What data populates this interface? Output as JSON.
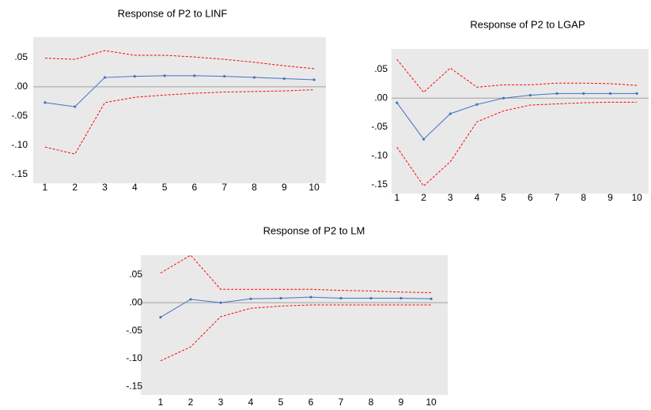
{
  "chart_data": [
    {
      "type": "line",
      "title": "Response of P2 to LINF",
      "categories": [
        1,
        2,
        3,
        4,
        5,
        6,
        7,
        8,
        9,
        10
      ],
      "series": [
        {
          "color": "#4472c4",
          "values": [
            -0.027,
            -0.034,
            0.016,
            0.018,
            0.019,
            0.019,
            0.018,
            0.016,
            0.014,
            0.012
          ]
        },
        {
          "color": "#ff0000",
          "dashed": true,
          "values": [
            0.049,
            0.047,
            0.062,
            0.054,
            0.054,
            0.051,
            0.047,
            0.042,
            0.036,
            0.031
          ]
        },
        {
          "color": "#ff0000",
          "dashed": true,
          "values": [
            -0.103,
            -0.115,
            -0.027,
            -0.018,
            -0.014,
            -0.011,
            -0.009,
            -0.008,
            -0.007,
            -0.005
          ]
        }
      ],
      "ylim": [
        -0.165,
        0.085
      ],
      "yticks": [
        {
          "value": 0.05,
          "label": ".05"
        },
        {
          "value": 0,
          "label": ".00"
        },
        {
          "value": -0.05,
          "label": "-.05"
        },
        {
          "value": -0.1,
          "label": "-.10"
        },
        {
          "value": -0.15,
          "label": "-.15"
        }
      ]
    },
    {
      "type": "line",
      "title": "Response of P2 to LGAP",
      "categories": [
        1,
        2,
        3,
        4,
        5,
        6,
        7,
        8,
        9,
        10
      ],
      "series": [
        {
          "color": "#4472c4",
          "values": [
            -0.008,
            -0.071,
            -0.027,
            -0.011,
            0,
            0.005,
            0.008,
            0.008,
            0.008,
            0.008
          ]
        },
        {
          "color": "#ff0000",
          "dashed": true,
          "values": [
            0.067,
            0.01,
            0.052,
            0.019,
            0.023,
            0.023,
            0.026,
            0.026,
            0.025,
            0.022
          ]
        },
        {
          "color": "#ff0000",
          "dashed": true,
          "values": [
            -0.085,
            -0.152,
            -0.11,
            -0.041,
            -0.022,
            -0.012,
            -0.01,
            -0.008,
            -0.007,
            -0.007
          ]
        }
      ],
      "ylim": [
        -0.165,
        0.085
      ],
      "yticks": [
        {
          "value": 0.05,
          "label": ".05"
        },
        {
          "value": 0,
          "label": ".00"
        },
        {
          "value": -0.05,
          "label": "-.05"
        },
        {
          "value": -0.1,
          "label": "-.10"
        },
        {
          "value": -0.15,
          "label": "-.15"
        }
      ]
    },
    {
      "type": "line",
      "title": "Response of P2 to LM",
      "categories": [
        1,
        2,
        3,
        4,
        5,
        6,
        7,
        8,
        9,
        10
      ],
      "series": [
        {
          "color": "#4472c4",
          "values": [
            -0.026,
            0.006,
            0,
            0.007,
            0.008,
            0.01,
            0.008,
            0.008,
            0.008,
            0.007
          ]
        },
        {
          "color": "#ff0000",
          "dashed": true,
          "values": [
            0.053,
            0.085,
            0.024,
            0.024,
            0.024,
            0.024,
            0.022,
            0.021,
            0.019,
            0.018
          ]
        },
        {
          "color": "#ff0000",
          "dashed": true,
          "values": [
            -0.104,
            -0.079,
            -0.025,
            -0.01,
            -0.006,
            -0.004,
            -0.004,
            -0.004,
            -0.004,
            -0.004
          ]
        }
      ],
      "ylim": [
        -0.165,
        0.085
      ],
      "yticks": [
        {
          "value": 0.05,
          "label": ".05"
        },
        {
          "value": 0,
          "label": ".00"
        },
        {
          "value": -0.05,
          "label": "-.05"
        },
        {
          "value": -0.1,
          "label": "-.10"
        },
        {
          "value": -0.15,
          "label": "-.15"
        }
      ]
    }
  ]
}
